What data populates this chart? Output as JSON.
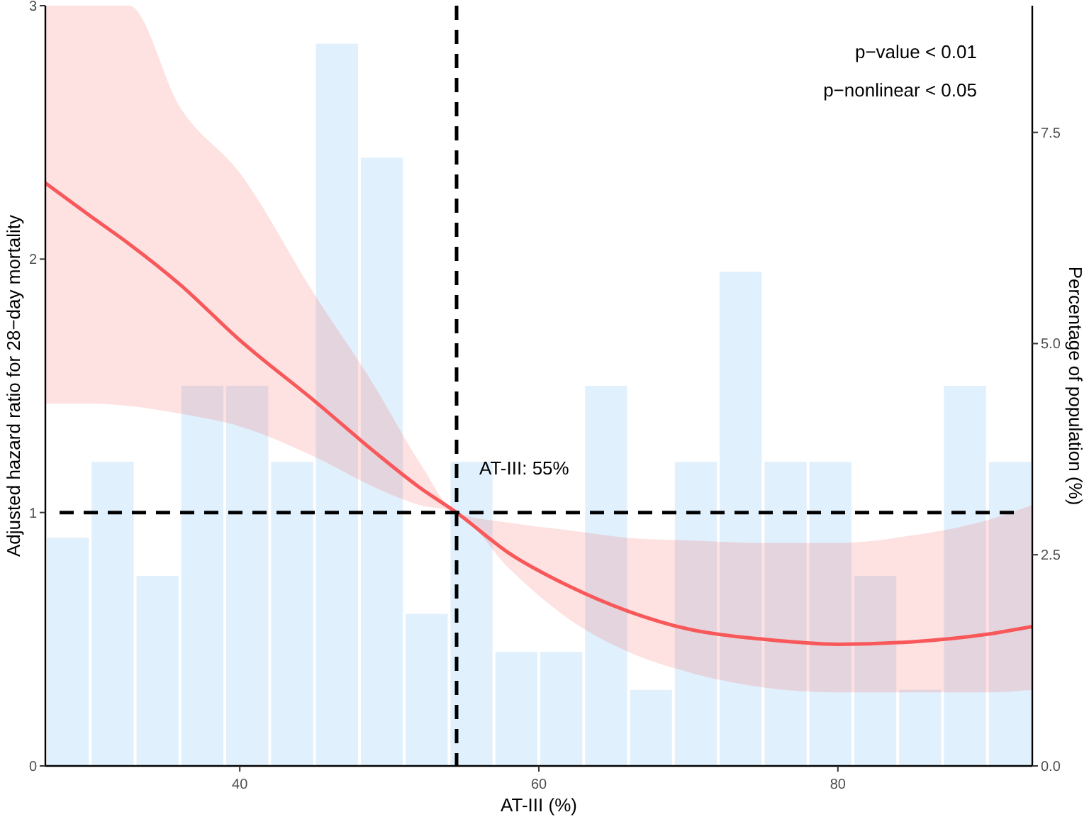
{
  "chart_data": {
    "type": "line",
    "xlabel": "AT-III (%)",
    "ylabel": "Adjusted hazard ratio for 28−day mortality",
    "y2label": "Percentage of population (%)",
    "xlim": [
      27,
      93
    ],
    "xticks": [
      40,
      60,
      80
    ],
    "ylim": [
      0,
      3
    ],
    "yticks": [
      0,
      1,
      2,
      3
    ],
    "y2lim": [
      0,
      9
    ],
    "y2ticks": [
      {
        "value": 0,
        "label": "0.0"
      },
      2.5,
      {
        "value": 5,
        "label": "5.0"
      },
      7.5
    ],
    "grid": false,
    "series": [
      {
        "type": "histogram",
        "axis": "y2",
        "color": "#ddeefc",
        "bins": [
          27,
          30,
          33,
          36,
          39,
          42,
          45,
          48,
          51,
          54,
          57,
          60,
          63,
          66,
          69,
          72,
          75,
          78,
          81,
          84,
          87,
          90,
          93
        ],
        "values": [
          2.7,
          3.6,
          2.25,
          4.5,
          4.5,
          3.6,
          8.55,
          7.2,
          1.8,
          3.6,
          1.35,
          1.35,
          4.5,
          0.9,
          3.6,
          5.85,
          3.6,
          3.6,
          2.25,
          0.9,
          4.5,
          3.6
        ]
      },
      {
        "color": "#f8585a",
        "x": [
          27,
          30,
          32.6,
          36,
          40,
          45,
          49,
          52,
          54.5,
          58,
          62,
          66,
          70,
          75,
          80,
          85,
          90,
          93
        ],
        "values": [
          2.3,
          2.17,
          2.06,
          1.9,
          1.68,
          1.44,
          1.24,
          1.1,
          1.0,
          0.84,
          0.71,
          0.61,
          0.54,
          0.5,
          0.48,
          0.49,
          0.52,
          0.55
        ],
        "lower": [
          1.43,
          1.43,
          1.42,
          1.39,
          1.34,
          1.22,
          1.1,
          1.03,
          1.0,
          0.78,
          0.58,
          0.45,
          0.37,
          0.31,
          0.29,
          0.29,
          0.29,
          0.3
        ],
        "upper": [
          3,
          3,
          3,
          2.6,
          2.34,
          1.86,
          1.5,
          1.2,
          1.0,
          0.96,
          0.93,
          0.9,
          0.89,
          0.88,
          0.88,
          0.91,
          0.97,
          1.03
        ]
      }
    ],
    "ref_lines": [
      {
        "axis": "x",
        "value": 54.5,
        "label": "AT-III: 55%",
        "color": "#000000",
        "line_style": "dashed"
      },
      {
        "axis": "y",
        "value": 1,
        "label": null,
        "color": "#000000",
        "line_style": "dashed"
      }
    ],
    "annotations": [
      "p−value < 0.01",
      "p−nonlinear < 0.05"
    ]
  }
}
